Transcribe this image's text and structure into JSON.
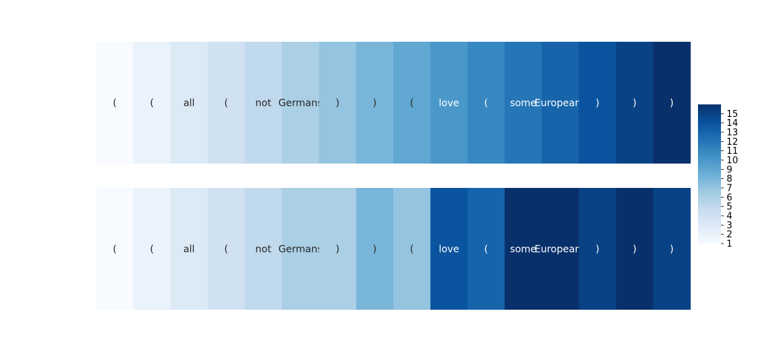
{
  "chart_data": {
    "type": "heatmap",
    "colormap": "Blues",
    "vmin": 1,
    "vmax": 16,
    "tokens": [
      "(",
      "(",
      "all",
      "(",
      "not",
      "Germans",
      ")",
      ")",
      "(",
      "love",
      "(",
      "some",
      "Europeans",
      ")",
      ")",
      ")"
    ],
    "rows": [
      {
        "values": [
          1,
          2,
          3,
          4,
          5,
          6,
          7,
          8,
          9,
          10,
          11,
          12,
          13,
          14,
          15,
          16
        ]
      },
      {
        "values": [
          1,
          2,
          3,
          4,
          5,
          6,
          6,
          8,
          7,
          14,
          13,
          16,
          16,
          15,
          16,
          15
        ]
      }
    ],
    "colorbar": {
      "ticks": [
        1,
        2,
        3,
        4,
        5,
        6,
        7,
        8,
        9,
        10,
        11,
        12,
        13,
        14,
        15
      ]
    }
  }
}
